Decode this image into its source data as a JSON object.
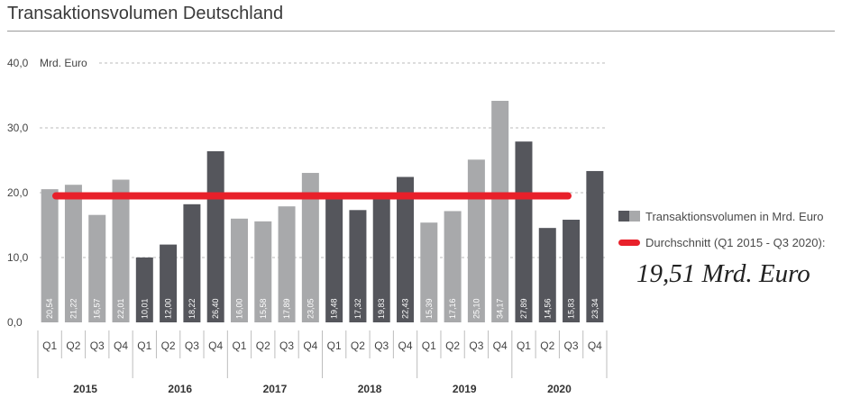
{
  "title": "Transaktionsvolumen Deutschland",
  "chart_data": {
    "type": "bar",
    "unit_label": "Mrd. Euro",
    "ylim": [
      0,
      40
    ],
    "yticks": [
      "0,0",
      "10,0",
      "20,0",
      "30,0",
      "40,0"
    ],
    "ytick_values": [
      0,
      10,
      20,
      30,
      40
    ],
    "categories": [
      "Q1",
      "Q2",
      "Q3",
      "Q4",
      "Q1",
      "Q2",
      "Q3",
      "Q4",
      "Q1",
      "Q2",
      "Q3",
      "Q4",
      "Q1",
      "Q2",
      "Q3",
      "Q4",
      "Q1",
      "Q2",
      "Q3",
      "Q4",
      "Q1",
      "Q2",
      "Q3",
      "Q4"
    ],
    "years": [
      "2015",
      "2016",
      "2017",
      "2018",
      "2019",
      "2020"
    ],
    "values": [
      20.54,
      21.22,
      16.57,
      22.01,
      10.01,
      12.0,
      18.22,
      26.4,
      16.0,
      15.58,
      17.89,
      23.05,
      19.48,
      17.32,
      19.83,
      22.43,
      15.39,
      17.16,
      25.1,
      34.17,
      27.89,
      14.56,
      15.83,
      23.34
    ],
    "value_labels": [
      "20,54",
      "21,22",
      "16,57",
      "22,01",
      "10,01",
      "12,00",
      "18,22",
      "26,40",
      "16,00",
      "15,58",
      "17,89",
      "23,05",
      "19,48",
      "17,32",
      "19,83",
      "22,43",
      "15,39",
      "17,16",
      "25,10",
      "34,17",
      "27,89",
      "14,56",
      "15,83",
      "23,34"
    ],
    "bar_shade": [
      "light",
      "light",
      "light",
      "light",
      "dark",
      "dark",
      "dark",
      "dark",
      "light",
      "light",
      "light",
      "light",
      "dark",
      "dark",
      "dark",
      "dark",
      "light",
      "light",
      "light",
      "light",
      "dark",
      "dark",
      "dark",
      "dark"
    ],
    "colors": {
      "dark": "#55565c",
      "light": "#a8a9ab",
      "average": "#e8202a",
      "grid": "#bbbbbb"
    },
    "average": 19.51,
    "legend": {
      "series_label": "Transaktionsvolumen in Mrd. Euro",
      "average_label": "Durchschnitt (Q1 2015 - Q3 2020):",
      "average_value": "19,51 Mrd. Euro"
    }
  }
}
